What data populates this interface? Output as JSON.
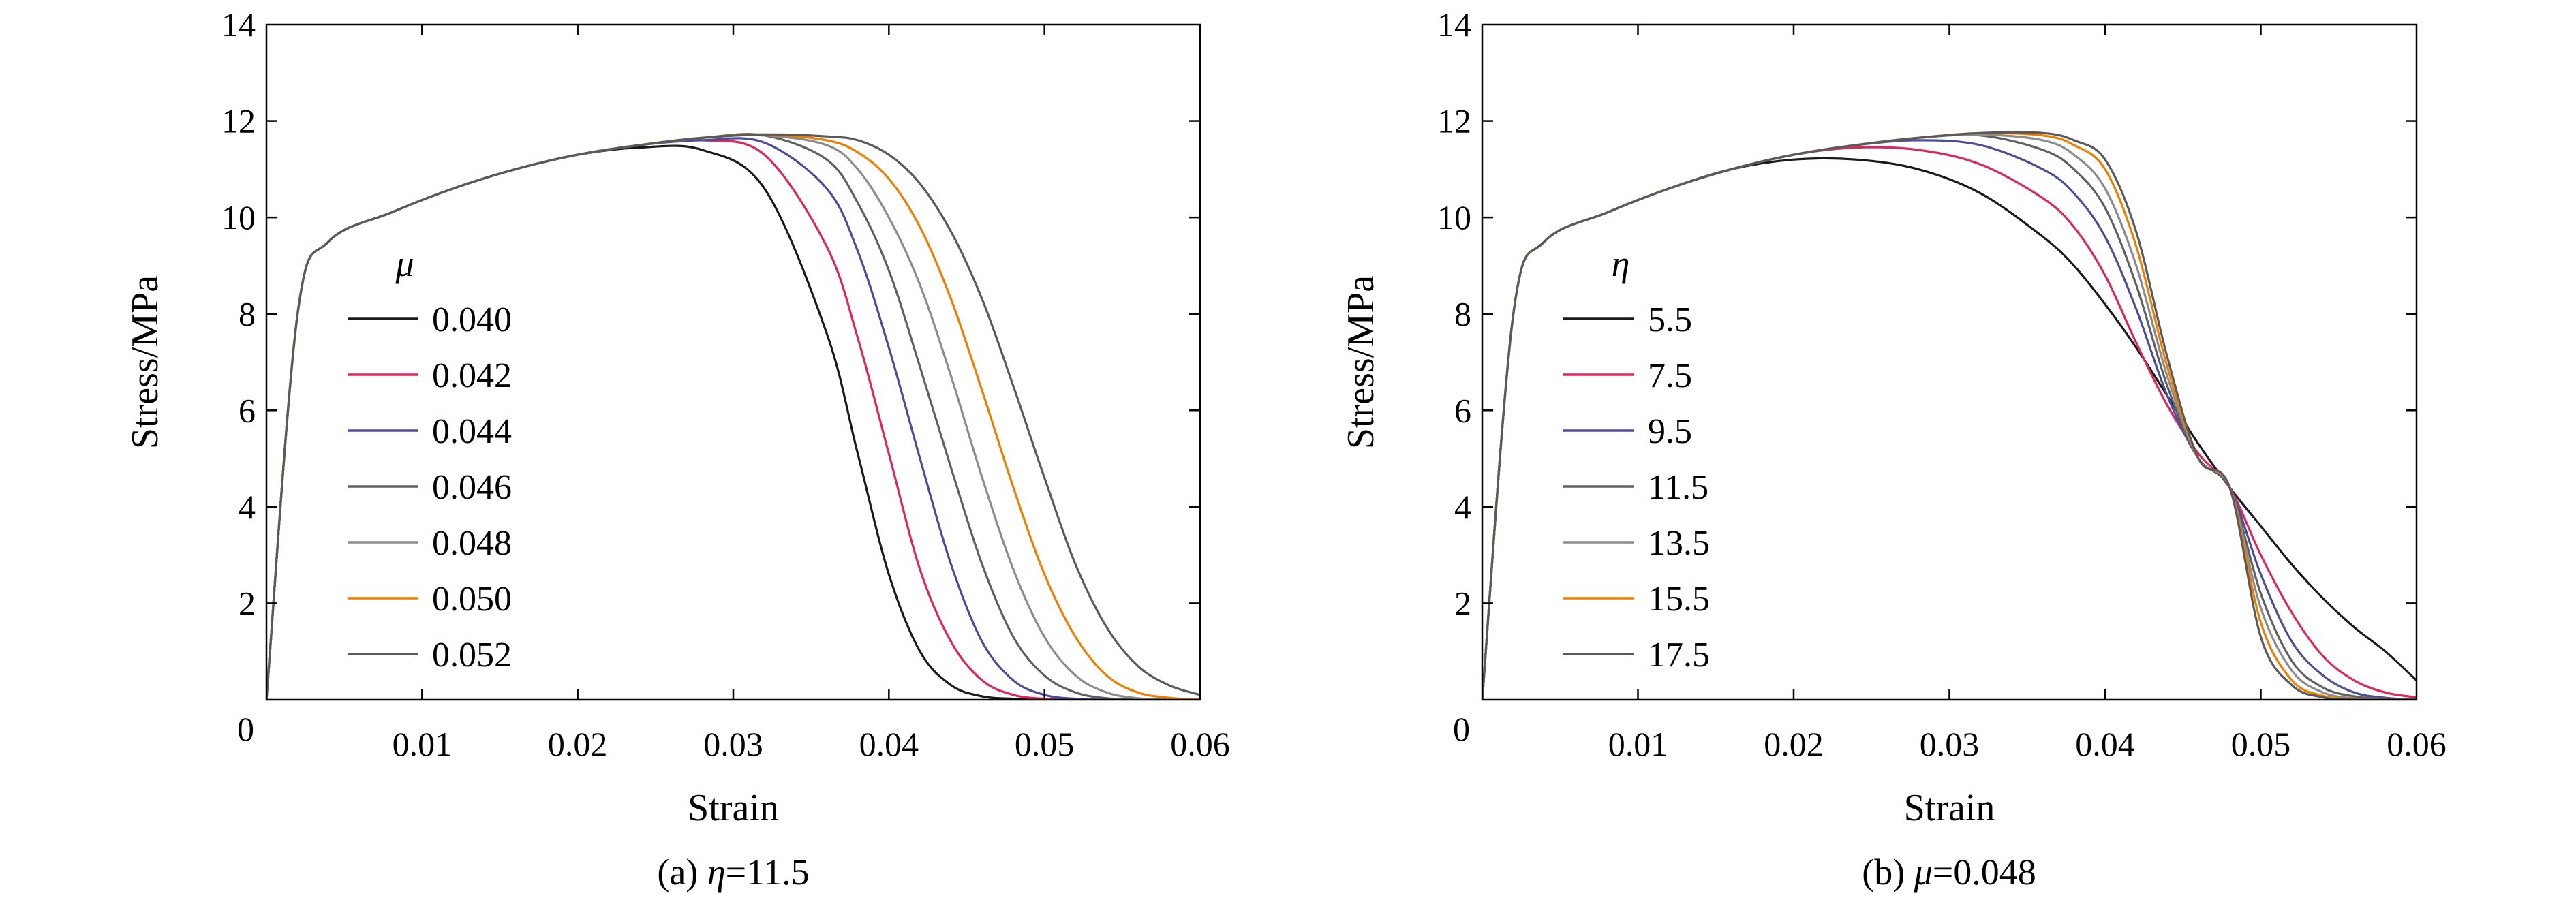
{
  "chart_data": [
    {
      "type": "line",
      "xlabel": "Strain",
      "ylabel": "Stress/MPa",
      "xlim": [
        0,
        0.06
      ],
      "ylim": [
        0,
        14
      ],
      "x_tick_labels": [
        "0",
        "0.01",
        "0.02",
        "0.03",
        "0.04",
        "0.05",
        "0.06"
      ],
      "y_tick_labels": [
        "2",
        "4",
        "6",
        "8",
        "10",
        "12",
        "14"
      ],
      "legend_title": "μ",
      "legend_placement": "left",
      "caption": {
        "prefix": "(a) ",
        "symbol": "η",
        "suffix": "=11.5"
      },
      "peak_strain": [
        0.026,
        0.0285,
        0.0305,
        0.0325,
        0.034,
        0.035,
        0.036
      ],
      "x": [
        0,
        0.002,
        0.004,
        0.008,
        0.012,
        0.016,
        0.02,
        0.024,
        0.028,
        0.032,
        0.036,
        0.038,
        0.04,
        0.042,
        0.044,
        0.046,
        0.048,
        0.05,
        0.052,
        0.054,
        0.056,
        0.058,
        0.06
      ],
      "series": [
        {
          "name": "0.040",
          "color": "#1a1a1a",
          "values": [
            0,
            8.0,
            9.5,
            10.1,
            10.6,
            11.0,
            11.3,
            11.45,
            11.4,
            10.6,
            7.6,
            5.1,
            2.6,
            1.0,
            0.3,
            0.07,
            0.02,
            0.0,
            0.0,
            0.0,
            0.0,
            0.0,
            0.0
          ]
        },
        {
          "name": "0.042",
          "color": "#e0245e",
          "values": [
            0,
            8.0,
            9.5,
            10.1,
            10.6,
            11.0,
            11.3,
            11.5,
            11.6,
            11.3,
            9.4,
            7.5,
            5.1,
            2.7,
            1.2,
            0.4,
            0.1,
            0.02,
            0.0,
            0.0,
            0.0,
            0.0,
            0.0
          ]
        },
        {
          "name": "0.044",
          "color": "#4a4e9a",
          "values": [
            0,
            8.0,
            9.5,
            10.1,
            10.6,
            11.0,
            11.3,
            11.5,
            11.6,
            11.55,
            10.6,
            9.3,
            7.3,
            5.0,
            2.8,
            1.2,
            0.4,
            0.1,
            0.02,
            0.0,
            0.0,
            0.0,
            0.0
          ]
        },
        {
          "name": "0.046",
          "color": "#606060",
          "values": [
            0,
            8.0,
            9.5,
            10.1,
            10.6,
            11.0,
            11.3,
            11.5,
            11.65,
            11.7,
            11.2,
            10.3,
            8.9,
            6.9,
            4.8,
            2.8,
            1.3,
            0.5,
            0.15,
            0.03,
            0.0,
            0.0,
            0.0
          ]
        },
        {
          "name": "0.048",
          "color": "#8c8c8c",
          "values": [
            0,
            8.0,
            9.5,
            10.1,
            10.6,
            11.0,
            11.3,
            11.5,
            11.65,
            11.7,
            11.5,
            11.0,
            10.0,
            8.6,
            6.7,
            4.6,
            2.7,
            1.3,
            0.5,
            0.15,
            0.03,
            0.0,
            0.0
          ]
        },
        {
          "name": "0.050",
          "color": "#ef7d00",
          "values": [
            0,
            8.0,
            9.5,
            10.1,
            10.6,
            11.0,
            11.3,
            11.5,
            11.65,
            11.72,
            11.6,
            11.35,
            10.8,
            9.8,
            8.3,
            6.4,
            4.4,
            2.6,
            1.3,
            0.5,
            0.15,
            0.04,
            0.0
          ]
        },
        {
          "name": "0.052",
          "color": "#5a5a5a",
          "values": [
            0,
            8.0,
            9.5,
            10.1,
            10.6,
            11.0,
            11.3,
            11.5,
            11.65,
            11.72,
            11.68,
            11.6,
            11.3,
            10.7,
            9.7,
            8.3,
            6.5,
            4.6,
            2.8,
            1.5,
            0.7,
            0.3,
            0.1
          ]
        }
      ]
    },
    {
      "type": "line",
      "xlabel": "Strain",
      "ylabel": "Stress/MPa",
      "xlim": [
        0,
        0.06
      ],
      "ylim": [
        0,
        14
      ],
      "x_tick_labels": [
        "0",
        "0.01",
        "0.02",
        "0.03",
        "0.04",
        "0.05",
        "0.06"
      ],
      "y_tick_labels": [
        "2",
        "4",
        "6",
        "8",
        "10",
        "12",
        "14"
      ],
      "legend_title": "η",
      "legend_placement": "left",
      "caption": {
        "prefix": "(b) ",
        "symbol": "μ",
        "suffix": "=0.048"
      },
      "x": [
        0,
        0.002,
        0.004,
        0.008,
        0.012,
        0.016,
        0.02,
        0.024,
        0.028,
        0.032,
        0.036,
        0.038,
        0.04,
        0.042,
        0.044,
        0.046,
        0.048,
        0.05,
        0.052,
        0.054,
        0.056,
        0.058,
        0.06
      ],
      "series": [
        {
          "name": "5.5",
          "color": "#1a1a1a",
          "values": [
            0,
            8.0,
            9.5,
            10.1,
            10.6,
            11.0,
            11.2,
            11.2,
            11.0,
            10.5,
            9.6,
            9.0,
            8.2,
            7.3,
            6.3,
            5.3,
            4.4,
            3.6,
            2.8,
            2.1,
            1.5,
            1.0,
            0.4
          ]
        },
        {
          "name": "7.5",
          "color": "#e0245e",
          "values": [
            0,
            8.0,
            9.5,
            10.1,
            10.6,
            11.0,
            11.3,
            11.45,
            11.4,
            11.1,
            10.4,
            9.8,
            8.8,
            7.4,
            6.1,
            5.1,
            4.4,
            3.0,
            1.8,
            0.9,
            0.4,
            0.15,
            0.05
          ]
        },
        {
          "name": "9.5",
          "color": "#4a4e9a",
          "values": [
            0,
            8.0,
            9.5,
            10.1,
            10.6,
            11.0,
            11.3,
            11.5,
            11.6,
            11.5,
            11.0,
            10.5,
            9.6,
            8.1,
            6.3,
            5.0,
            4.4,
            2.6,
            1.2,
            0.5,
            0.15,
            0.04,
            0.0
          ]
        },
        {
          "name": "11.5",
          "color": "#606060",
          "values": [
            0,
            8.0,
            9.5,
            10.1,
            10.6,
            11.0,
            11.3,
            11.5,
            11.65,
            11.7,
            11.4,
            11.0,
            10.2,
            8.6,
            6.5,
            5.0,
            4.4,
            2.2,
            0.8,
            0.25,
            0.07,
            0.02,
            0.0
          ]
        },
        {
          "name": "13.5",
          "color": "#8c8c8c",
          "values": [
            0,
            8.0,
            9.5,
            10.1,
            10.6,
            11.0,
            11.3,
            11.5,
            11.65,
            11.72,
            11.6,
            11.3,
            10.6,
            9.0,
            6.7,
            5.0,
            4.4,
            1.9,
            0.6,
            0.15,
            0.03,
            0.0,
            0.0
          ]
        },
        {
          "name": "15.5",
          "color": "#ef7d00",
          "values": [
            0,
            8.0,
            9.5,
            10.1,
            10.6,
            11.0,
            11.3,
            11.5,
            11.65,
            11.75,
            11.7,
            11.5,
            11.0,
            9.4,
            6.9,
            5.0,
            4.4,
            1.6,
            0.4,
            0.08,
            0.01,
            0.0,
            0.0
          ]
        },
        {
          "name": "17.5",
          "color": "#5a5a5a",
          "values": [
            0,
            8.0,
            9.5,
            10.1,
            10.6,
            11.0,
            11.3,
            11.5,
            11.65,
            11.75,
            11.75,
            11.6,
            11.2,
            9.7,
            7.1,
            5.0,
            4.4,
            1.3,
            0.3,
            0.05,
            0.0,
            0.0,
            0.0
          ]
        }
      ]
    }
  ]
}
